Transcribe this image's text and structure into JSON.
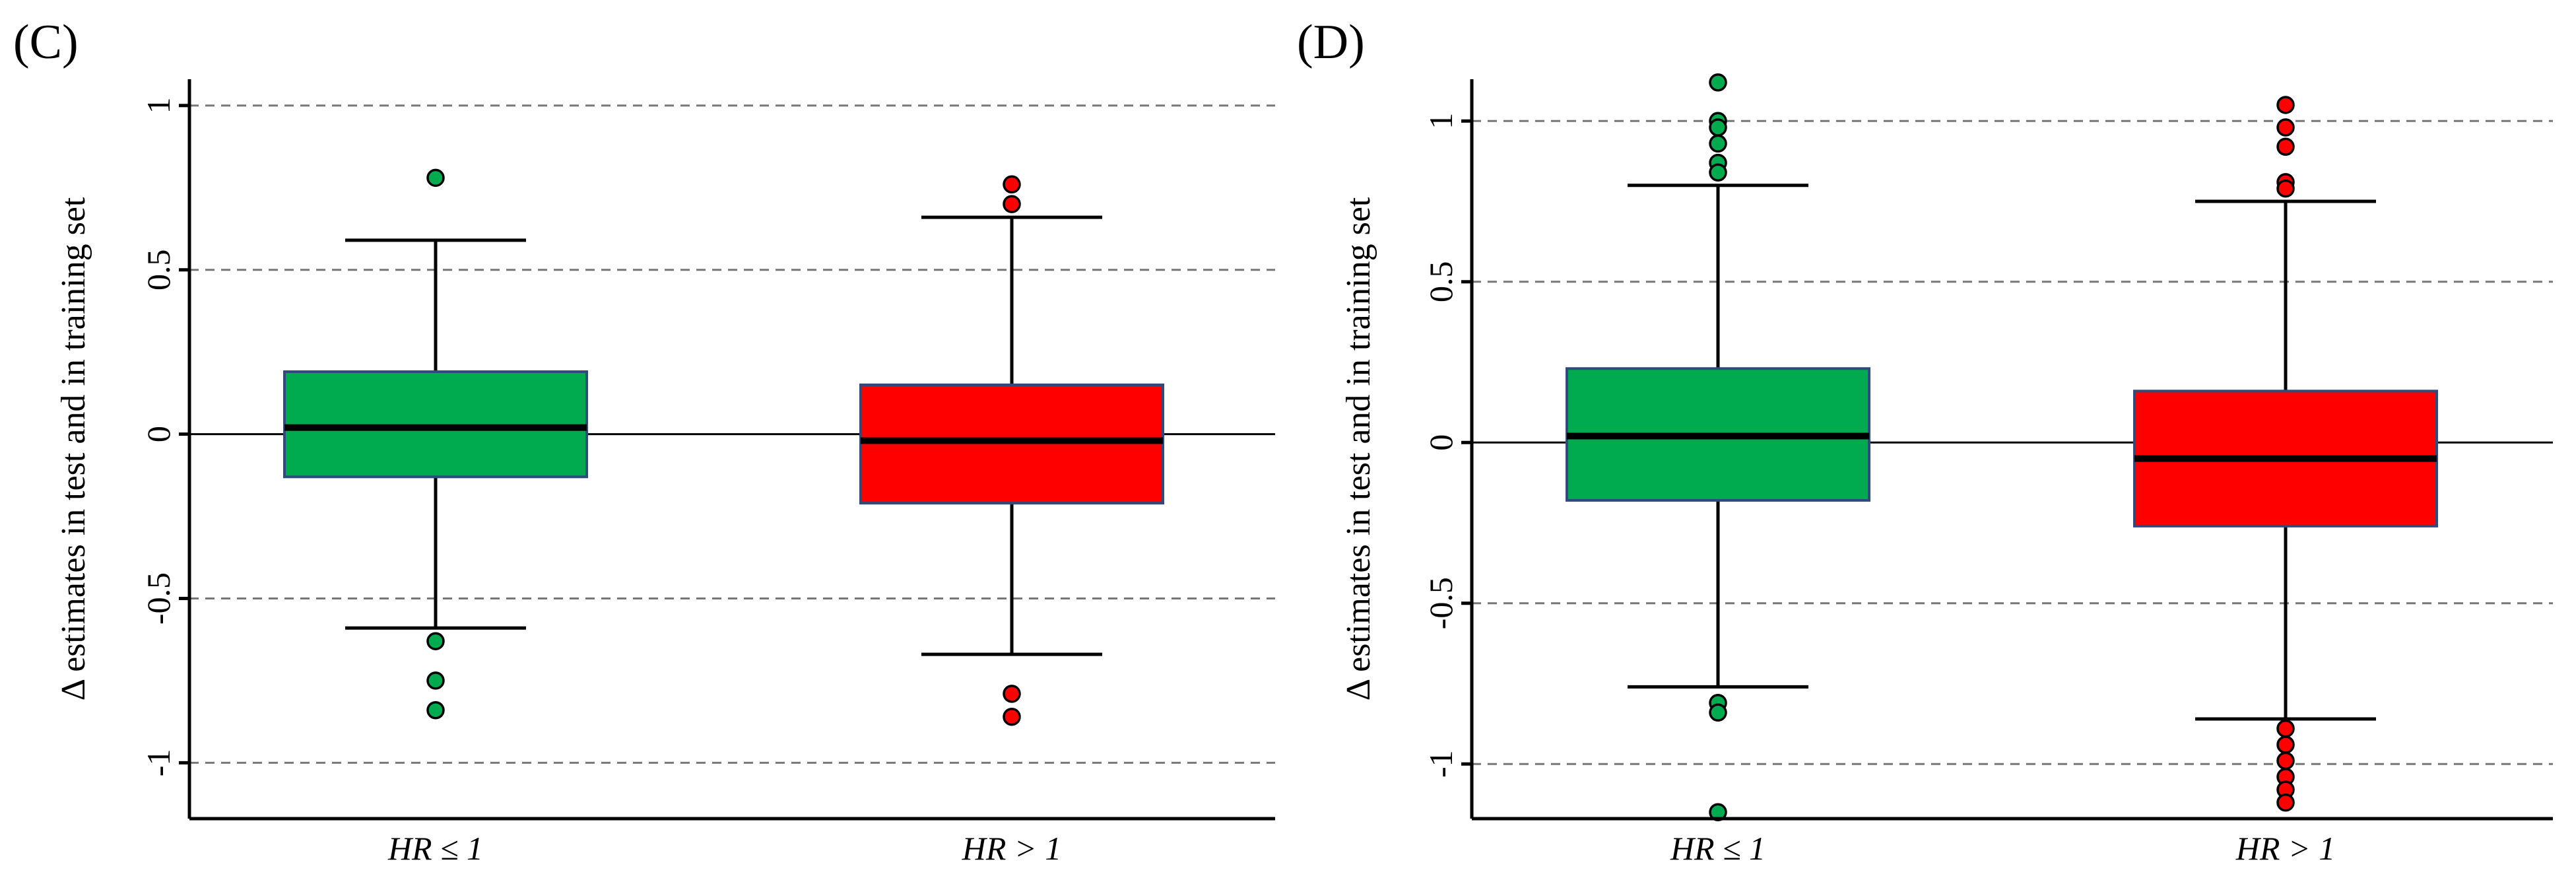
{
  "chart_data": [
    {
      "type": "boxplot",
      "panel_label": "(C)",
      "ylabel": "Δ estimates in test and in training set",
      "ylim": [
        -1.17,
        1.08
      ],
      "yticks": [
        1,
        0.5,
        0,
        -0.5,
        -1
      ],
      "ytick_labels": [
        "1",
        "0.5",
        "0",
        "-0.5",
        "-1"
      ],
      "grid": "dashed at ±0.5 and ±1",
      "categories": [
        "HR ≤ 1",
        "HR > 1"
      ],
      "series": [
        {
          "name": "HR ≤ 1",
          "color": "#00aa4f",
          "whisker_low": -0.59,
          "q1": -0.13,
          "median": 0.02,
          "q3": 0.19,
          "whisker_high": 0.59,
          "outliers": [
            0.78,
            -0.63,
            -0.75,
            -0.84
          ]
        },
        {
          "name": "HR > 1",
          "color": "#ff0000",
          "whisker_low": -0.67,
          "q1": -0.21,
          "median": -0.02,
          "q3": 0.15,
          "whisker_high": 0.66,
          "outliers": [
            0.76,
            0.7,
            -0.79,
            -0.86
          ]
        }
      ]
    },
    {
      "type": "boxplot",
      "panel_label": "(D)",
      "ylabel": "Δ estimates in test and in training set",
      "ylim": [
        -1.17,
        1.13
      ],
      "yticks": [
        1,
        0.5,
        0,
        -0.5,
        -1
      ],
      "ytick_labels": [
        "1",
        "0.5",
        "0",
        "-0.5",
        "-1"
      ],
      "grid": "dashed at ±0.5 and ±1",
      "categories": [
        "HR ≤ 1",
        "HR > 1"
      ],
      "series": [
        {
          "name": "HR ≤ 1",
          "color": "#00aa4f",
          "whisker_low": -0.76,
          "q1": -0.18,
          "median": 0.02,
          "q3": 0.23,
          "whisker_high": 0.8,
          "outliers": [
            1.12,
            1.0,
            0.98,
            0.93,
            0.87,
            0.84,
            -0.81,
            -0.84,
            -1.15
          ]
        },
        {
          "name": "HR > 1",
          "color": "#ff0000",
          "whisker_low": -0.86,
          "q1": -0.26,
          "median": -0.05,
          "q3": 0.16,
          "whisker_high": 0.75,
          "outliers": [
            1.05,
            0.98,
            0.92,
            0.81,
            0.79,
            -0.89,
            -0.94,
            -0.99,
            -1.04,
            -1.08,
            -1.12
          ]
        }
      ]
    }
  ]
}
